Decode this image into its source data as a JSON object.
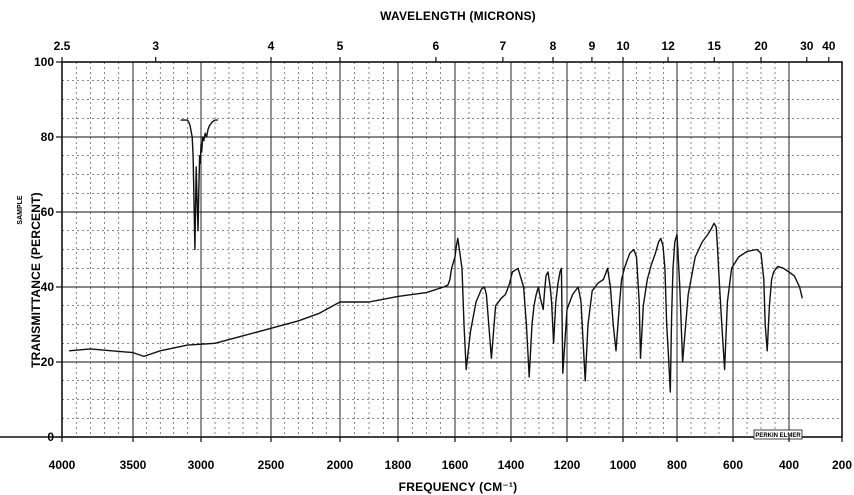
{
  "chart_data": {
    "type": "line",
    "title_top": "WAVELENGTH (MICRONS)",
    "xlabel": "FREQUENCY (CM⁻¹)",
    "ylabel": "TRANSMITTANCE (PERCENT)",
    "side_label": "SAMPLE",
    "brand": "PERKIN ELMER",
    "ylim": [
      0,
      100
    ],
    "y_ticks": [
      0,
      20,
      40,
      60,
      80,
      100
    ],
    "x_ticks": [
      4000,
      3500,
      3000,
      2500,
      2000,
      1800,
      1600,
      1400,
      1200,
      1000,
      800,
      600,
      400,
      200
    ],
    "top_ticks": [
      {
        "label": "2.5",
        "cm": 4000
      },
      {
        "label": "3",
        "cm": 3333
      },
      {
        "label": "4",
        "cm": 2500
      },
      {
        "label": "5",
        "cm": 2000
      },
      {
        "label": "6",
        "cm": 1667
      },
      {
        "label": "7",
        "cm": 1429
      },
      {
        "label": "8",
        "cm": 1250
      },
      {
        "label": "9",
        "cm": 1111
      },
      {
        "label": "10",
        "cm": 1000
      },
      {
        "label": "12",
        "cm": 833
      },
      {
        "label": "15",
        "cm": 667
      },
      {
        "label": "20",
        "cm": 500
      },
      {
        "label": "30",
        "cm": 333
      },
      {
        "label": "40",
        "cm": 250
      }
    ],
    "series": [
      {
        "x": [
          3950,
          3800,
          3650,
          3500,
          3420,
          3300,
          3100,
          2900,
          2700,
          2500,
          2300,
          2150,
          2000,
          1900,
          1800,
          1700,
          1640,
          1625,
          1618,
          1612,
          1600,
          1595,
          1590,
          1575,
          1568,
          1560,
          1545,
          1525,
          1505,
          1495,
          1488,
          1470,
          1455,
          1435,
          1420,
          1412,
          1405,
          1395,
          1375,
          1355,
          1345,
          1335,
          1325,
          1318,
          1310,
          1302,
          1295,
          1285,
          1280,
          1275,
          1268,
          1260,
          1255,
          1248,
          1240,
          1232,
          1225,
          1220,
          1215,
          1200,
          1180,
          1160,
          1150,
          1143,
          1135,
          1125,
          1110,
          1090,
          1070,
          1055,
          1045,
          1035,
          1025,
          1012,
          1005,
          995,
          985,
          975,
          960,
          950,
          940,
          935,
          925,
          910,
          895,
          880,
          868,
          860,
          852,
          845,
          838,
          832,
          825,
          820,
          815,
          808,
          800,
          790,
          780,
          760,
          735,
          710,
          690,
          678,
          668,
          660,
          655,
          648,
          640,
          630,
          620,
          605,
          580,
          550,
          515,
          500,
          490,
          485,
          478,
          470,
          462,
          455,
          440,
          420,
          400,
          380,
          360,
          350
        ],
        "y": [
          23,
          23.5,
          23,
          22.5,
          21.5,
          23,
          24.5,
          25,
          27,
          29,
          31,
          33,
          36,
          36,
          37.5,
          38.5,
          40,
          40.5,
          42,
          45,
          48,
          51,
          53,
          45,
          30,
          18,
          28,
          36,
          39.5,
          40,
          38,
          21,
          35,
          37,
          38,
          39.5,
          41,
          44,
          45,
          40,
          30,
          16,
          30,
          35,
          38,
          40,
          37,
          34,
          39,
          43,
          44,
          40,
          36,
          25,
          36,
          41,
          44,
          45,
          17,
          34,
          38,
          40,
          36,
          26,
          15,
          30,
          39,
          41,
          42,
          45,
          40,
          30,
          23,
          36,
          42,
          45,
          47,
          49,
          50,
          48,
          36,
          21,
          35,
          42,
          46,
          49,
          52,
          53,
          51,
          45,
          30,
          22,
          12,
          32,
          45,
          52,
          54,
          40,
          20,
          38,
          48,
          52,
          54,
          55.5,
          57,
          56,
          50,
          40,
          30,
          18,
          36,
          45,
          48,
          49.5,
          50,
          49,
          42,
          30,
          23,
          35,
          42,
          44,
          45.5,
          45,
          44,
          43,
          40,
          37
        ]
      },
      {
        "x": [
          3150,
          3120,
          3100,
          3090,
          3080,
          3065,
          3058,
          3050,
          3045,
          3040,
          3035,
          3030,
          3022,
          3015,
          3010,
          3005,
          3000,
          2995,
          2988,
          2980,
          2970,
          2960,
          2950,
          2940,
          2920,
          2900,
          2880
        ],
        "y": [
          84.5,
          84.5,
          84.5,
          84,
          83,
          80,
          75,
          60,
          50,
          62,
          72,
          65,
          55,
          68,
          75,
          73,
          78,
          76,
          80,
          79,
          81,
          80,
          82,
          83,
          84,
          84.5,
          84.5
        ]
      }
    ]
  }
}
